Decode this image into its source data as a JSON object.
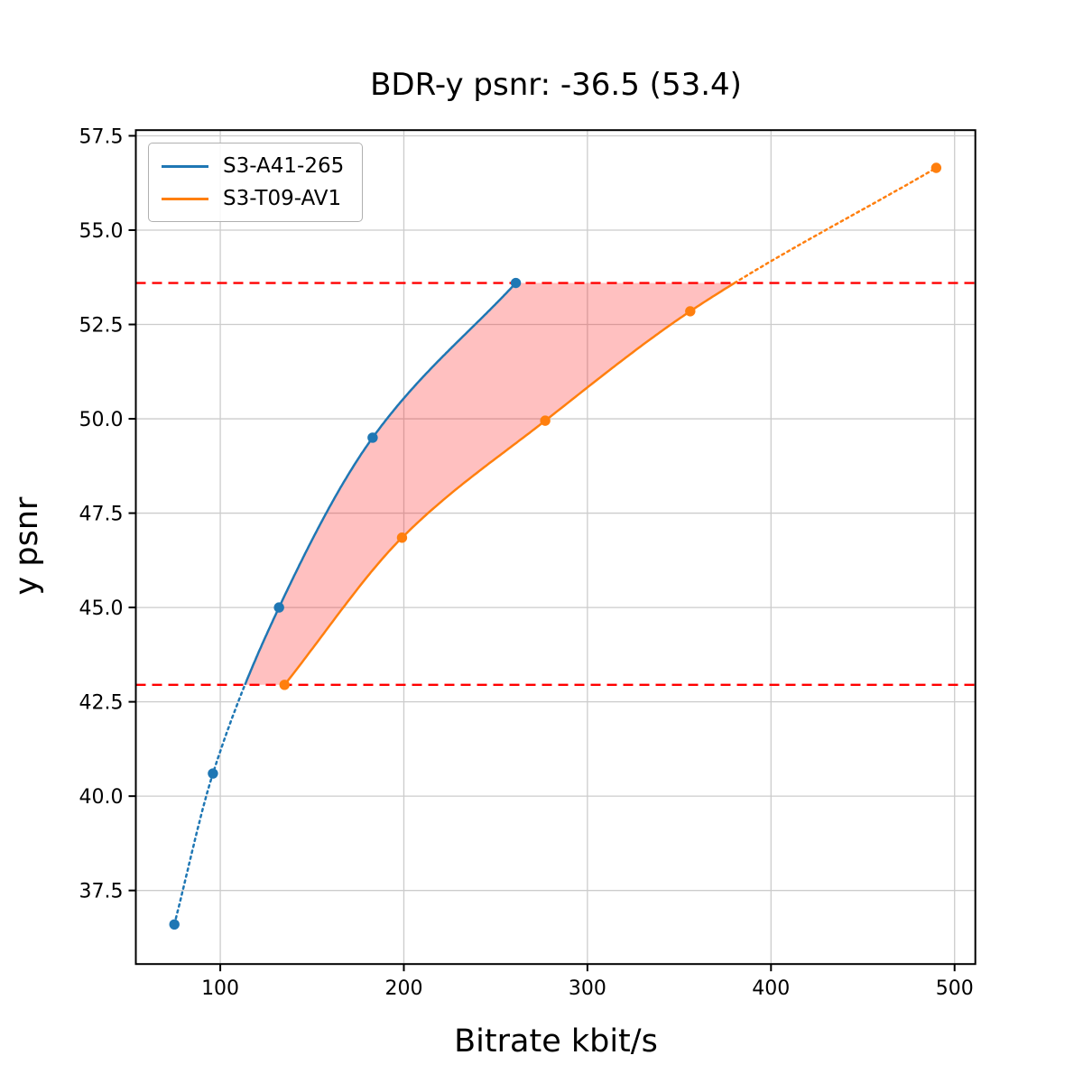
{
  "chart_data": {
    "type": "line",
    "title": "BDR-y psnr: -36.5 (53.4)",
    "xlabel": "Bitrate kbit/s",
    "ylabel": "y psnr",
    "xlim": [
      54,
      511.3
    ],
    "ylim": [
      35.55,
      57.65
    ],
    "x_ticks": [
      100,
      200,
      300,
      400,
      500
    ],
    "y_ticks": [
      37.5,
      40.0,
      42.5,
      45.0,
      47.5,
      50.0,
      52.5,
      55.0,
      57.5
    ],
    "grid": true,
    "grid_color": "#cccccc",
    "frame_color": "#000000",
    "legend_position": "upper-left",
    "series": [
      {
        "name": "S3-A41-265",
        "color": "#1f77b4",
        "x": [
          75,
          96,
          132,
          183,
          261
        ],
        "y": [
          36.6,
          40.6,
          45.0,
          49.5,
          53.6
        ],
        "style_note": "dotted below overlap region, solid inside"
      },
      {
        "name": "S3-T09-AV1",
        "color": "#ff7f0e",
        "x": [
          135,
          199,
          277,
          356,
          490
        ],
        "y": [
          42.95,
          46.85,
          49.95,
          52.85,
          56.65
        ],
        "style_note": "solid inside overlap region, dotted above"
      }
    ],
    "hlines": [
      {
        "y": 42.95,
        "color": "#ff0000",
        "style": "dashed"
      },
      {
        "y": 53.6,
        "color": "#ff0000",
        "style": "dashed"
      }
    ],
    "shaded_region": {
      "between_series": [
        "S3-A41-265",
        "S3-T09-AV1"
      ],
      "y_range": [
        42.95,
        53.6
      ],
      "fill_color": "#ff1e1e",
      "fill_alpha": 0.28
    }
  }
}
